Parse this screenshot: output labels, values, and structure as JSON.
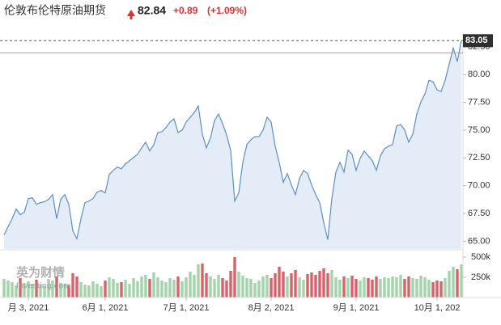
{
  "header": {
    "title": "伦敦布伦特原油期货",
    "last": "82.84",
    "change": "+0.89",
    "change_pct": "(+1.09%)"
  },
  "watermark": {
    "brand": "英为财情",
    "site": "Investing.com"
  },
  "chart_data": {
    "type": "area",
    "categories": [
      null,
      null,
      null,
      null,
      null,
      null,
      "月 3, 2021",
      null,
      null,
      null,
      null,
      null,
      null,
      null,
      null,
      null,
      null,
      null,
      null,
      null,
      null,
      null,
      null,
      null,
      null,
      "6月 1, 2021",
      null,
      null,
      null,
      null,
      null,
      null,
      null,
      null,
      null,
      null,
      null,
      null,
      null,
      null,
      null,
      null,
      null,
      null,
      null,
      "7月 1, 2021",
      null,
      null,
      null,
      null,
      null,
      null,
      null,
      null,
      null,
      null,
      null,
      null,
      null,
      null,
      null,
      null,
      null,
      null,
      null,
      null,
      "8月 2, 2021",
      null,
      null,
      null,
      null,
      null,
      null,
      null,
      null,
      null,
      null,
      null,
      null,
      null,
      null,
      null,
      null,
      null,
      null,
      null,
      null,
      "9月 1, 2021",
      null,
      null,
      null,
      null,
      null,
      null,
      null,
      null,
      null,
      null,
      null,
      null,
      null,
      null,
      null,
      null,
      null,
      null,
      null,
      "10月 1, 202",
      null,
      null,
      null,
      null,
      null,
      null
    ],
    "values": [
      65.58,
      66.3,
      67.03,
      67.9,
      67.39,
      67.61,
      68.84,
      68.91,
      68.33,
      68.48,
      68.55,
      68.77,
      69.2,
      67.03,
      68.77,
      69.2,
      68.33,
      65.94,
      65.22,
      67.03,
      68.48,
      68.62,
      68.84,
      69.42,
      69.57,
      69.35,
      71.01,
      71.38,
      71.67,
      71.52,
      71.96,
      72.25,
      72.54,
      72.83,
      73.41,
      73.91,
      73.12,
      73.7,
      74.78,
      74.86,
      75.22,
      75.72,
      76.01,
      74.78,
      75.0,
      75.72,
      76.16,
      76.59,
      77.17,
      74.64,
      73.41,
      74.28,
      75.87,
      76.45,
      75.58,
      74.57,
      73.19,
      68.62,
      69.35,
      72.1,
      73.7,
      74.13,
      74.42,
      74.42,
      75.0,
      76.16,
      75.72,
      73.55,
      72.1,
      70.29,
      71.09,
      70.07,
      69.2,
      70.65,
      71.38,
      71.09,
      70.07,
      69.2,
      68.48,
      66.67,
      65.14,
      68.84,
      71.23,
      72.1,
      71.23,
      73.19,
      72.83,
      71.38,
      72.46,
      73.12,
      72.68,
      72.25,
      71.38,
      72.68,
      73.33,
      73.55,
      73.7,
      75.36,
      75.51,
      75.0,
      73.91,
      74.64,
      76.45,
      77.54,
      78.26,
      79.49,
      79.35,
      78.62,
      78.48,
      79.49,
      80.94,
      82.39,
      81.16,
      83.05
    ],
    "color": "#5b8fc7",
    "fill": "#e4edf7",
    "ylim": [
      64.3,
      83.8
    ],
    "yticks": [
      {
        "value": 65,
        "label": "65.00"
      },
      {
        "value": 67.5,
        "label": "67.50"
      },
      {
        "value": 70,
        "label": "70.00"
      },
      {
        "value": 72.5,
        "label": "72.50"
      },
      {
        "value": 75,
        "label": "75.00"
      },
      {
        "value": 77.5,
        "label": "77.50"
      },
      {
        "value": 80,
        "label": "80.00"
      },
      {
        "value": 82.5,
        "label": "82.50"
      }
    ],
    "prev_close": 81.95,
    "prev_close_color": "#f08080",
    "volume": {
      "values": [
        230000,
        210000,
        190000,
        150000,
        240000,
        180000,
        200000,
        170000,
        220000,
        160000,
        140000,
        230000,
        210000,
        260000,
        180000,
        170000,
        150000,
        300000,
        260000,
        190000,
        160000,
        150000,
        200000,
        170000,
        140000,
        210000,
        250000,
        230000,
        180000,
        190000,
        220000,
        170000,
        240000,
        200000,
        260000,
        280000,
        230000,
        310000,
        250000,
        210000,
        190000,
        240000,
        220000,
        260000,
        200000,
        250000,
        320000,
        280000,
        410000,
        420000,
        300000,
        260000,
        230000,
        280000,
        240000,
        210000,
        330000,
        500000,
        320000,
        270000,
        240000,
        230000,
        180000,
        210000,
        260000,
        280000,
        240000,
        300000,
        380000,
        320000,
        260000,
        300000,
        340000,
        250000,
        220000,
        290000,
        310000,
        280000,
        330000,
        360000,
        300000,
        340000,
        250000,
        220000,
        260000,
        240000,
        270000,
        230000,
        210000,
        250000,
        240000,
        220000,
        260000,
        230000,
        250000,
        240000,
        260000,
        250000,
        280000,
        230000,
        260000,
        240000,
        230000,
        270000,
        250000,
        220000,
        190000,
        210000,
        200000,
        240000,
        330000,
        380000,
        350000,
        410000
      ],
      "up_color": "#a3d4aa",
      "down_color": "#d9626a",
      "ylim": [
        0,
        580000
      ],
      "yticks": [
        {
          "value": 250000,
          "label": "250k"
        },
        {
          "value": 500000,
          "label": "500k"
        }
      ]
    }
  }
}
